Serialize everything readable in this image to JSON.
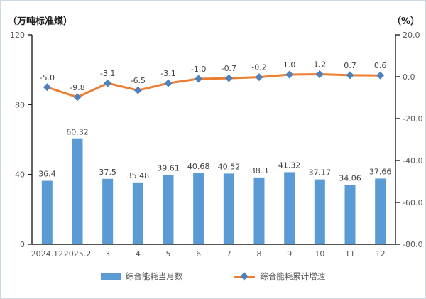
{
  "chart_data": {
    "type": "combo-bar-line",
    "left_axis_title": "（万吨标准煤）",
    "right_axis_title": "（%）",
    "categories": [
      "2024.12",
      "2025.2",
      "3",
      "4",
      "5",
      "6",
      "7",
      "8",
      "9",
      "10",
      "11",
      "12"
    ],
    "series": [
      {
        "name": "综合能耗当月数",
        "type": "bar",
        "axis": "left",
        "color": "#5B9BD5",
        "values": [
          36.4,
          60.32,
          37.5,
          35.48,
          39.61,
          40.68,
          40.52,
          38.3,
          41.32,
          37.17,
          34.06,
          37.66
        ],
        "labels": [
          "36.4",
          "60.32",
          "37.5",
          "35.48",
          "39.61",
          "40.68",
          "40.52",
          "38.3",
          "41.32",
          "37.17",
          "34.06",
          "37.66"
        ]
      },
      {
        "name": "综合能耗累计增速",
        "type": "line",
        "axis": "right",
        "color": "#ED7D31",
        "marker": "diamond",
        "marker_color": "#4F81BD",
        "values": [
          -5.0,
          -9.8,
          -3.1,
          -6.5,
          -3.1,
          -1.0,
          -0.7,
          -0.2,
          1.0,
          1.2,
          0.7,
          0.6
        ],
        "labels": [
          "-5.0",
          "-9.8",
          "-3.1",
          "-6.5",
          "-3.1",
          "-1.0",
          "-0.7",
          "-0.2",
          "1.0",
          "1.2",
          "0.7",
          "0.6"
        ]
      }
    ],
    "left_axis": {
      "min": 0,
      "max": 120,
      "tick_step": 40,
      "tick_labels": [
        "120",
        "80",
        "40",
        "0"
      ]
    },
    "right_axis": {
      "min": -80,
      "max": 20,
      "tick_step": 20,
      "tick_labels": [
        "20.0",
        "0.0",
        "-20.0",
        "-40.0",
        "-60.0",
        "-80.0"
      ]
    },
    "legend_position": "bottom",
    "grid": false,
    "axis_color": "#1f1f1f",
    "tick_label_color": "#595959",
    "data_label_color": "#404040"
  }
}
